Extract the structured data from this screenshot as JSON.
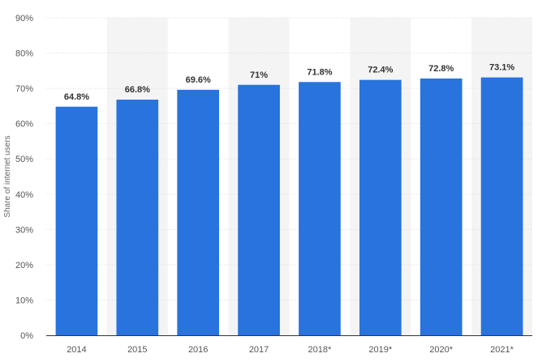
{
  "chart_data": {
    "type": "bar",
    "categories": [
      "2014",
      "2015",
      "2016",
      "2017",
      "2018*",
      "2019*",
      "2020*",
      "2021*"
    ],
    "values": [
      64.8,
      66.8,
      69.6,
      71,
      71.8,
      72.4,
      72.8,
      73.1
    ],
    "data_labels": [
      "64.8%",
      "66.8%",
      "69.6%",
      "71%",
      "71.8%",
      "72.4%",
      "72.8%",
      "73.1%"
    ],
    "title": "",
    "xlabel": "",
    "ylabel": "Share of internet users",
    "ylim": [
      0,
      90
    ],
    "yticks": [
      0,
      10,
      20,
      30,
      40,
      50,
      60,
      70,
      80,
      90
    ],
    "ytick_labels": [
      "0%",
      "10%",
      "20%",
      "30%",
      "40%",
      "50%",
      "60%",
      "70%",
      "80%",
      "90%"
    ],
    "grid": true,
    "legend": "none",
    "colors": {
      "bar": "#2873dd",
      "grid": "#dddddd",
      "band": "#f4f4f4",
      "axis": "#333333"
    }
  }
}
